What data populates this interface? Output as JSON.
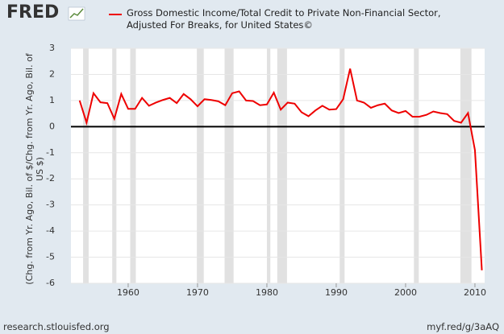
{
  "chart_data": {
    "type": "line",
    "logo": "FRED",
    "series": [
      {
        "name": "Gross Domestic Income/Total Credit to Private Non-Financial Sector, Adjusted For Breaks, for United States©",
        "color": "#ee0000",
        "values": [
          1.0,
          0.15,
          1.28,
          0.93,
          0.9,
          0.3,
          1.25,
          0.68,
          0.68,
          1.1,
          0.8,
          0.92,
          1.02,
          1.1,
          0.9,
          1.25,
          1.05,
          0.78,
          1.05,
          1.02,
          0.97,
          0.82,
          1.28,
          1.35,
          1.0,
          0.98,
          0.82,
          0.85,
          1.3,
          0.65,
          0.92,
          0.88,
          0.55,
          0.4,
          0.62,
          0.8,
          0.65,
          0.67,
          1.05,
          2.22,
          1.0,
          0.92,
          0.72,
          0.82,
          0.88,
          0.62,
          0.52,
          0.6,
          0.38,
          0.38,
          0.45,
          0.58,
          0.52,
          0.48,
          0.22,
          0.15,
          0.52,
          -0.9,
          -5.5
        ]
      }
    ],
    "x": [
      1953,
      1954,
      1955,
      1956,
      1957,
      1958,
      1959,
      1960,
      1961,
      1962,
      1963,
      1964,
      1965,
      1966,
      1967,
      1968,
      1969,
      1970,
      1971,
      1972,
      1973,
      1974,
      1975,
      1976,
      1977,
      1978,
      1979,
      1980,
      1981,
      1982,
      1983,
      1984,
      1985,
      1986,
      1987,
      1988,
      1989,
      1990,
      1991,
      1992,
      1993,
      1994,
      1995,
      1996,
      1997,
      1998,
      1999,
      2000,
      2001,
      2002,
      2003,
      2004,
      2005,
      2006,
      2007,
      2008,
      2009,
      2010,
      2011
    ],
    "recessions": [
      [
        1953.5,
        1954.3
      ],
      [
        1957.7,
        1958.3
      ],
      [
        1960.3,
        1961.1
      ],
      [
        1969.9,
        1970.9
      ],
      [
        1973.9,
        1975.2
      ],
      [
        1980.0,
        1980.5
      ],
      [
        1981.5,
        1982.9
      ],
      [
        1990.5,
        1991.2
      ],
      [
        2001.2,
        2001.9
      ],
      [
        2007.9,
        2009.5
      ]
    ],
    "ylabel": "(Chg. from Yr. Ago, Bil. of $/Chg. from Yr. Ago, Bil. of US $)",
    "xlim": [
      1951.75,
      2011.4
    ],
    "ylim": [
      -6,
      3
    ],
    "xticks": [
      1960,
      1970,
      1980,
      1990,
      2000,
      2010
    ],
    "yticks": [
      -6,
      -5,
      -4,
      -3,
      -2,
      -1,
      0,
      1,
      2,
      3
    ],
    "grid": true,
    "zero_line": true,
    "source": "research.stlouisfed.org",
    "link": "myf.red/g/3aAQ"
  }
}
